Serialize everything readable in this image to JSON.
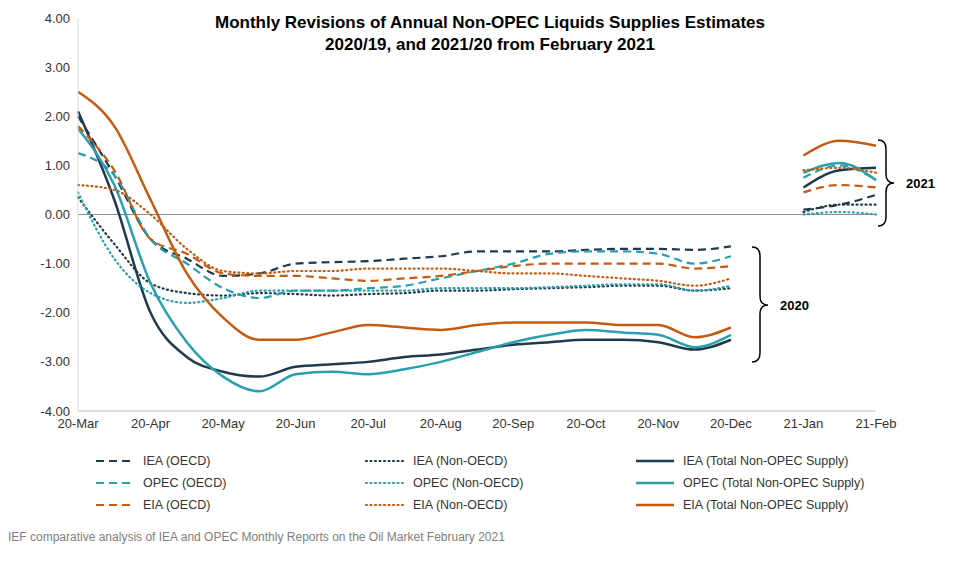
{
  "chart_data": {
    "type": "line",
    "title": "Monthly Revisions of Annual Non-OPEC Liquids Supplies Estimates",
    "subtitle": "2020/19, and 2021/20 from February 2021",
    "source": "IEF comparative analysis of IEA and OPEC Monthly Reports on the Oil Market February 2021",
    "categories": [
      "20-Mar",
      null,
      "20-Apr",
      null,
      "20-May",
      null,
      "20-Jun",
      null,
      "20-Jul",
      null,
      "20-Aug",
      null,
      "20-Sep",
      null,
      "20-Oct",
      null,
      "20-Nov",
      null,
      "20-Dec",
      null,
      "21-Jan",
      null,
      "21-Feb"
    ],
    "ylim": [
      -4,
      4
    ],
    "yticks": [
      {
        "value": -4,
        "label": "-4.00"
      },
      {
        "value": -3,
        "label": "-3.00"
      },
      {
        "value": -2,
        "label": "-2.00"
      },
      {
        "value": -1,
        "label": "-1.00"
      },
      {
        "value": 0,
        "label": "0.00"
      },
      {
        "value": 1,
        "label": "1.00"
      },
      {
        "value": 2,
        "label": "2.00"
      },
      {
        "value": 3,
        "label": "3.00"
      },
      {
        "value": 4,
        "label": "4.00"
      }
    ],
    "baseline": 0,
    "grid": false,
    "legend": "bottom",
    "annotations": [
      {
        "text": "2021"
      },
      {
        "text": "2020"
      }
    ],
    "series": [
      {
        "name": "IEA (OECD)",
        "color": "#1f3a4d",
        "line_style": "dashed",
        "values": [
          2.0,
          0.8,
          -0.5,
          -0.9,
          -1.25,
          -1.2,
          -1.0,
          -0.97,
          -0.95,
          -0.9,
          -0.85,
          -0.75,
          -0.75,
          -0.75,
          -0.72,
          -0.7,
          -0.7,
          -0.72,
          -0.65,
          null,
          0.1,
          0.2,
          0.4
        ]
      },
      {
        "name": "IEA (Non-OECD)",
        "color": "#1f3a4d",
        "line_style": "dotted",
        "values": [
          0.35,
          -0.6,
          -1.4,
          -1.6,
          -1.65,
          -1.6,
          -1.62,
          -1.65,
          -1.62,
          -1.6,
          -1.55,
          -1.55,
          -1.52,
          -1.5,
          -1.48,
          -1.45,
          -1.45,
          -1.55,
          -1.5,
          null,
          0.05,
          0.2,
          0.2
        ]
      },
      {
        "name": "IEA (Total Non-OPEC Supply)",
        "color": "#1f3a4d",
        "line_style": "solid",
        "values": [
          2.1,
          0.3,
          -2.0,
          -2.9,
          -3.2,
          -3.3,
          -3.1,
          -3.05,
          -3.0,
          -2.9,
          -2.85,
          -2.75,
          -2.65,
          -2.6,
          -2.55,
          -2.55,
          -2.6,
          -2.75,
          -2.55,
          null,
          0.55,
          0.9,
          0.95
        ]
      },
      {
        "name": "OPEC (OECD)",
        "color": "#2a9fae",
        "line_style": "dashed",
        "values": [
          1.25,
          0.8,
          -0.5,
          -1.0,
          -1.5,
          -1.7,
          -1.55,
          -1.55,
          -1.5,
          -1.45,
          -1.3,
          -1.15,
          -1.0,
          -0.8,
          -0.75,
          -0.75,
          -0.8,
          -1.0,
          -0.85,
          null,
          0.75,
          1.0,
          0.7
        ]
      },
      {
        "name": "OPEC (Non-OECD)",
        "color": "#2a9fae",
        "line_style": "dotted",
        "values": [
          0.45,
          -0.9,
          -1.6,
          -1.8,
          -1.7,
          -1.55,
          -1.55,
          -1.55,
          -1.55,
          -1.55,
          -1.5,
          -1.5,
          -1.5,
          -1.48,
          -1.45,
          -1.42,
          -1.42,
          -1.55,
          -1.45,
          null,
          0.0,
          0.05,
          0.0
        ]
      },
      {
        "name": "OPEC (Total Non-OPEC Supply)",
        "color": "#2a9fae",
        "line_style": "solid",
        "values": [
          1.75,
          0.6,
          -1.4,
          -2.6,
          -3.3,
          -3.6,
          -3.25,
          -3.2,
          -3.25,
          -3.15,
          -3.0,
          -2.8,
          -2.6,
          -2.45,
          -2.35,
          -2.4,
          -2.45,
          -2.7,
          -2.45,
          null,
          0.85,
          1.05,
          0.7
        ]
      },
      {
        "name": "EIA (OECD)",
        "color": "#c55a11",
        "line_style": "dashed",
        "values": [
          1.8,
          0.9,
          -0.5,
          -0.8,
          -1.2,
          -1.25,
          -1.25,
          -1.3,
          -1.35,
          -1.3,
          -1.25,
          -1.15,
          -1.05,
          -1.0,
          -1.0,
          -1.0,
          -1.0,
          -1.1,
          -1.05,
          null,
          0.45,
          0.6,
          0.55
        ]
      },
      {
        "name": "EIA (Non-OECD)",
        "color": "#c55a11",
        "line_style": "dotted",
        "values": [
          0.6,
          0.5,
          0.0,
          -0.7,
          -1.15,
          -1.2,
          -1.15,
          -1.15,
          -1.1,
          -1.1,
          -1.1,
          -1.15,
          -1.2,
          -1.2,
          -1.25,
          -1.3,
          -1.35,
          -1.45,
          -1.3,
          null,
          0.9,
          0.95,
          0.85
        ]
      },
      {
        "name": "EIA (Total Non-OPEC Supply)",
        "color": "#c55a11",
        "line_style": "solid",
        "values": [
          2.5,
          1.8,
          0.3,
          -1.2,
          -2.1,
          -2.55,
          -2.55,
          -2.4,
          -2.25,
          -2.3,
          -2.35,
          -2.25,
          -2.2,
          -2.2,
          -2.2,
          -2.25,
          -2.25,
          -2.5,
          -2.3,
          null,
          1.2,
          1.5,
          1.4
        ]
      }
    ]
  }
}
